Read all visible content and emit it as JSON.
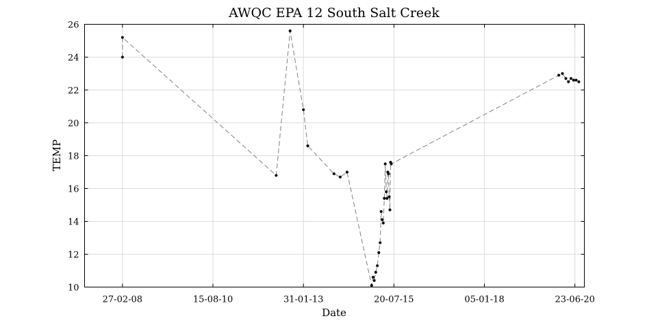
{
  "chart_data": {
    "type": "line",
    "title": "AWQC EPA 12 South Salt Creek",
    "xlabel": "Date",
    "ylabel": "TEMP",
    "x_ticks": [
      "27-02-08",
      "15-08-10",
      "31-01-13",
      "20-07-15",
      "05-01-18",
      "23-06-20"
    ],
    "y_ticks": [
      10,
      12,
      14,
      16,
      18,
      20,
      22,
      24,
      26
    ],
    "ylim": [
      10,
      26
    ],
    "xlim": [
      "2007-02-15",
      "2020-09-25"
    ],
    "grid": true,
    "series": [
      {
        "x": [
          "2008-02-27",
          "2008-02-27",
          "2012-05-05",
          "2012-09-20",
          "2013-01-31",
          "2013-03-15",
          "2013-12-01",
          "2014-02-01",
          "2014-04-10",
          "2014-12-10",
          "2014-12-25",
          "2015-01-05",
          "2015-01-20",
          "2015-02-05",
          "2015-02-20",
          "2015-03-05",
          "2015-03-15",
          "2015-03-25",
          "2015-04-05",
          "2015-04-15",
          "2015-04-25",
          "2015-05-05",
          "2015-05-12",
          "2015-05-20",
          "2015-05-27",
          "2015-06-03",
          "2015-06-10",
          "2015-06-17",
          "2015-06-24",
          "2020-01-15",
          "2020-02-20",
          "2020-03-25",
          "2020-04-20",
          "2020-05-15",
          "2020-06-10",
          "2020-07-05",
          "2020-08-01"
        ],
        "y": [
          24.0,
          25.2,
          16.8,
          25.6,
          20.8,
          18.6,
          16.9,
          16.7,
          17.0,
          10.1,
          10.6,
          10.4,
          10.9,
          11.3,
          12.1,
          12.7,
          14.6,
          14.1,
          13.9,
          15.4,
          17.5,
          15.8,
          15.4,
          17.0,
          16.9,
          15.5,
          14.7,
          17.6,
          17.5,
          22.9,
          23.0,
          22.7,
          22.5,
          22.7,
          22.6,
          22.6,
          22.5
        ]
      }
    ]
  }
}
